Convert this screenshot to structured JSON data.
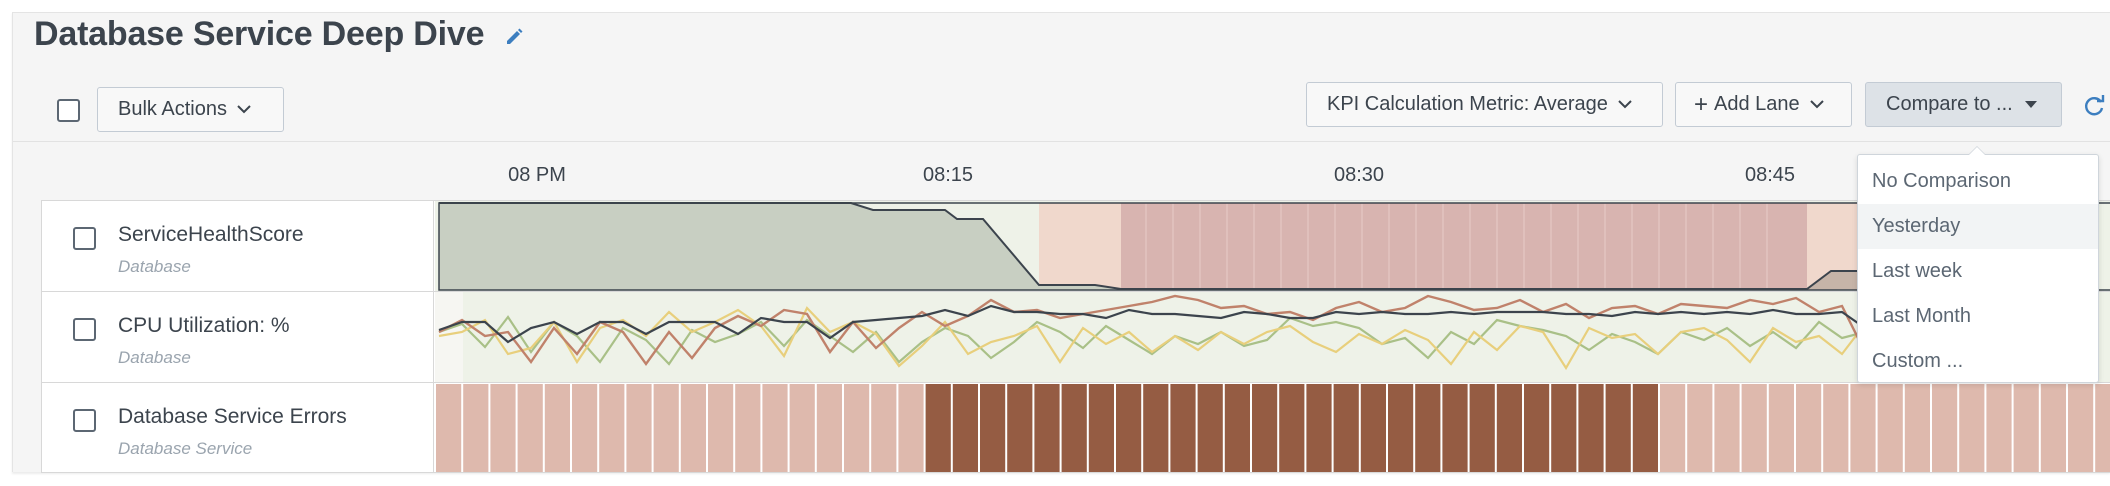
{
  "header": {
    "title": "Database Service Deep Dive"
  },
  "toolbar": {
    "bulk_actions_label": "Bulk Actions",
    "kpi_metric_label": "KPI Calculation Metric: Average",
    "add_lane_label": "Add Lane",
    "compare_label": "Compare to ..."
  },
  "timeline": {
    "ticks": [
      "08 PM",
      "08:15",
      "08:30",
      "08:45"
    ]
  },
  "lanes": [
    {
      "name": "ServiceHealthScore",
      "subtitle": "Database"
    },
    {
      "name": "CPU Utilization: %",
      "subtitle": "Database"
    },
    {
      "name": "Database Service Errors",
      "subtitle": "Database Service"
    }
  ],
  "compare_menu": {
    "options": [
      "No Comparison",
      "Yesterday",
      "Last week",
      "Last Month",
      "Custom ..."
    ],
    "highlighted": "Yesterday"
  },
  "colors": {
    "health_fill": "#c8cfc2",
    "health_critical": "#d8b4b0",
    "health_warning": "#f0d8cc",
    "error_light": "#deb9ad",
    "error_dark": "#955c43",
    "cpu_dark": "#3c444d",
    "cpu_orange": "#c0826b",
    "cpu_yellow": "#e8cf7c",
    "cpu_green": "#a9c087",
    "accent_blue": "#3c7ebf"
  }
}
